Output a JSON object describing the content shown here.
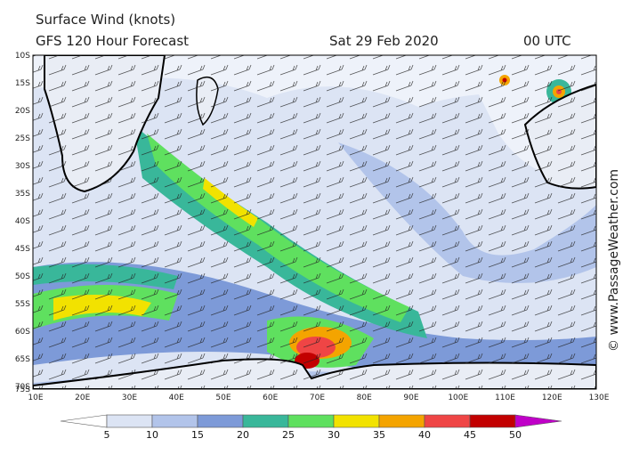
{
  "header": {
    "title": "Surface Wind (knots)",
    "subtitle": "GFS 120 Hour Forecast",
    "date": "Sat 29 Feb 2020",
    "time": "00 UTC"
  },
  "map": {
    "lat_labels": [
      "10S",
      "15S",
      "20S",
      "25S",
      "30S",
      "35S",
      "40S",
      "45S",
      "50S",
      "55S",
      "60S",
      "65S",
      "70S",
      "75S"
    ],
    "lon_labels": [
      "10E",
      "20E",
      "30E",
      "40E",
      "50E",
      "60E",
      "70E",
      "80E",
      "90E",
      "100E",
      "110E",
      "120E",
      "130E"
    ]
  },
  "legend": {
    "ticks": [
      5,
      10,
      15,
      20,
      25,
      30,
      35,
      40,
      45,
      50
    ],
    "colors": [
      "#ffffff",
      "#dce4f4",
      "#b2c4ea",
      "#7d9ad8",
      "#39b79a",
      "#5fe05f",
      "#f2e200",
      "#f4a400",
      "#ef4545",
      "#c20000",
      "#c000c8"
    ]
  },
  "credit": "© www.PassageWeather.com"
}
